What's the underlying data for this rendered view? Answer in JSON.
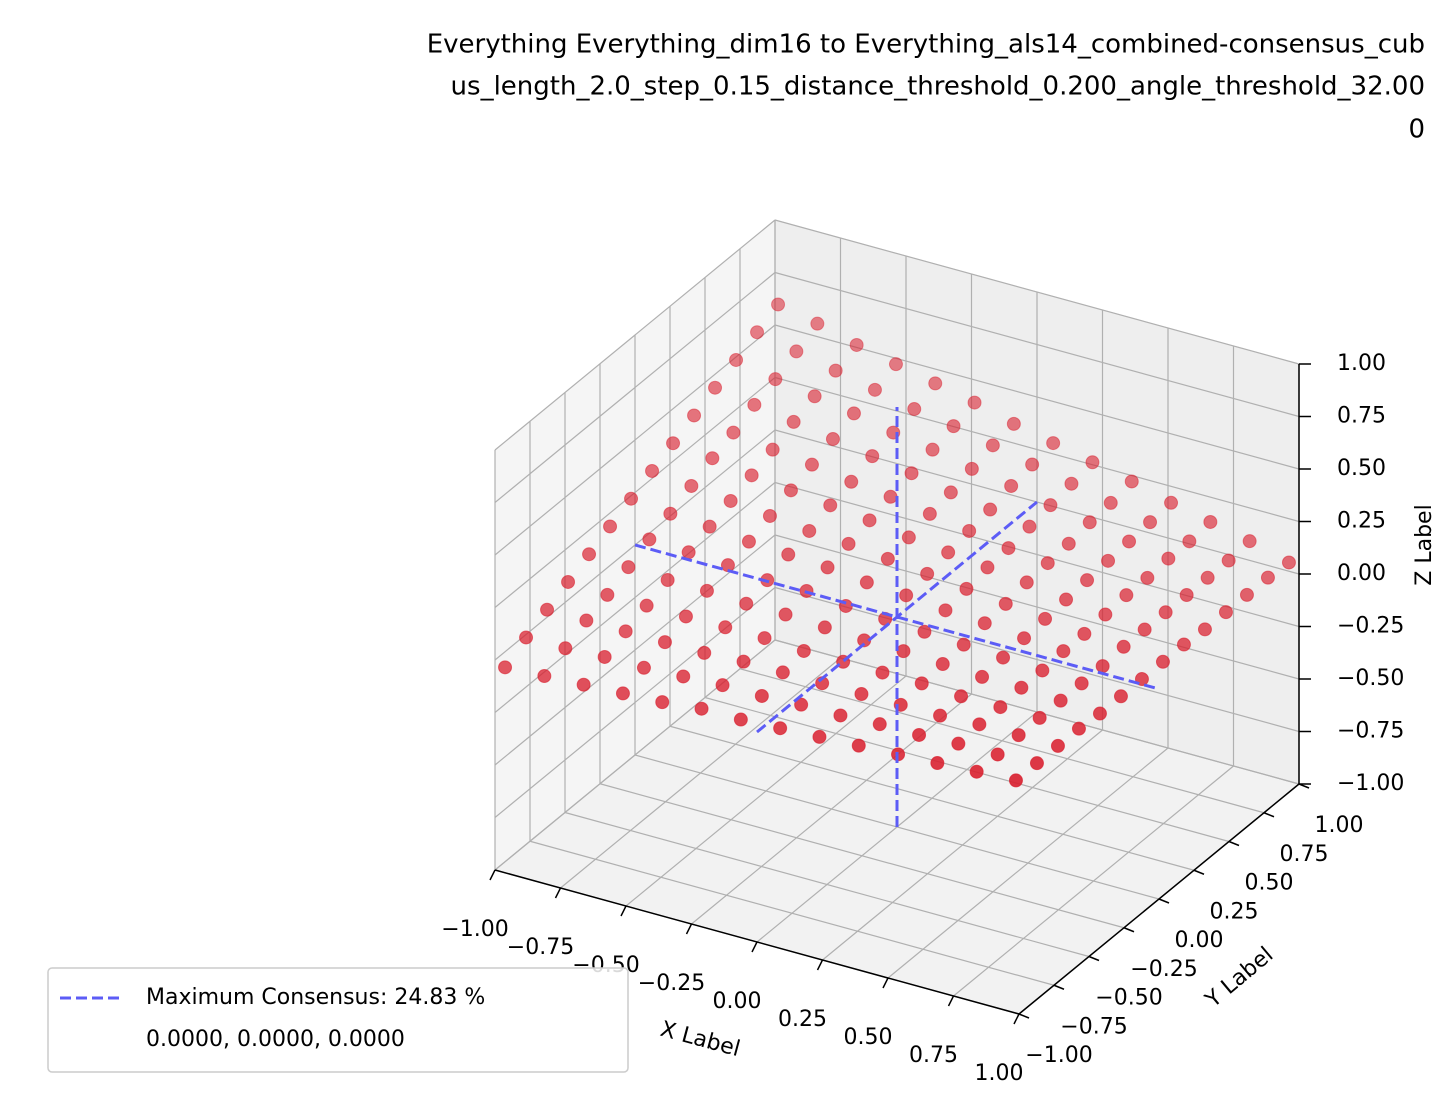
{
  "chart_data": {
    "type": "scatter3d",
    "title": [
      "Everything Everything_dim16 to Everything_als14_combined-consensus_cub",
      "us_length_2.0_step_0.15_distance_threshold_0.200_angle_threshold_32.00",
      "0"
    ],
    "xlabel": "X Label",
    "ylabel": "Y Label",
    "zlabel": "Z Label",
    "color": "#d9202f",
    "x": [
      -0.975,
      -0.825,
      -0.675,
      -0.525,
      -0.375,
      -0.225,
      -0.075,
      0.075,
      0.225,
      0.375,
      0.525,
      0.675,
      0.825,
      0.975
    ],
    "y": [
      -0.975,
      -0.825,
      -0.675,
      -0.525,
      -0.375,
      -0.225,
      -0.075,
      0.075,
      0.225,
      0.375,
      0.525,
      0.675,
      0.825,
      0.975
    ],
    "z": [
      [
        -0.04,
        0.02,
        0.07,
        0.12,
        0.17,
        0.22,
        0.27,
        0.32,
        0.37,
        0.42,
        0.47,
        0.52,
        0.57,
        0.62
      ],
      [
        -0.03,
        0.02,
        0.07,
        0.11,
        0.16,
        0.21,
        0.25,
        0.3,
        0.35,
        0.39,
        0.44,
        0.48,
        0.53,
        0.58
      ],
      [
        -0.02,
        0.03,
        0.07,
        0.11,
        0.15,
        0.2,
        0.24,
        0.28,
        0.32,
        0.36,
        0.41,
        0.45,
        0.49,
        0.53
      ],
      [
        -0.01,
        0.03,
        0.07,
        0.11,
        0.15,
        0.19,
        0.22,
        0.26,
        0.3,
        0.34,
        0.38,
        0.42,
        0.45,
        0.49
      ],
      [
        0.0,
        0.04,
        0.07,
        0.11,
        0.14,
        0.17,
        0.21,
        0.24,
        0.28,
        0.31,
        0.35,
        0.38,
        0.41,
        0.45
      ],
      [
        0.02,
        0.05,
        0.08,
        0.11,
        0.14,
        0.17,
        0.2,
        0.23,
        0.26,
        0.29,
        0.32,
        0.35,
        0.38,
        0.41
      ],
      [
        0.02,
        0.05,
        0.08,
        0.1,
        0.13,
        0.15,
        0.18,
        0.21,
        0.23,
        0.26,
        0.28,
        0.31,
        0.34,
        0.36
      ],
      [
        0.03,
        0.06,
        0.08,
        0.1,
        0.12,
        0.14,
        0.17,
        0.19,
        0.21,
        0.23,
        0.25,
        0.28,
        0.3,
        0.32
      ],
      [
        0.04,
        0.06,
        0.08,
        0.1,
        0.12,
        0.13,
        0.15,
        0.17,
        0.19,
        0.2,
        0.22,
        0.24,
        0.26,
        0.28
      ],
      [
        0.05,
        0.07,
        0.08,
        0.1,
        0.11,
        0.12,
        0.14,
        0.15,
        0.17,
        0.18,
        0.19,
        0.21,
        0.22,
        0.24
      ],
      [
        0.06,
        0.07,
        0.08,
        0.09,
        0.1,
        0.11,
        0.12,
        0.13,
        0.14,
        0.15,
        0.16,
        0.17,
        0.18,
        0.19
      ],
      [
        0.07,
        0.08,
        0.09,
        0.09,
        0.1,
        0.1,
        0.11,
        0.11,
        0.12,
        0.13,
        0.13,
        0.14,
        0.14,
        0.15
      ],
      [
        0.08,
        0.08,
        0.09,
        0.09,
        0.09,
        0.09,
        0.09,
        0.1,
        0.1,
        0.1,
        0.1,
        0.1,
        0.1,
        0.11
      ],
      [
        0.09,
        0.09,
        0.09,
        0.09,
        0.08,
        0.08,
        0.08,
        0.08,
        0.08,
        0.07,
        0.07,
        0.07,
        0.07,
        0.06
      ]
    ],
    "series": [
      {
        "name": "Maximum Consensus: 24.83 %",
        "color": "#5c5cf6",
        "style": "dashed",
        "point": {
          "x": 0,
          "y": 0,
          "z": 0
        }
      },
      {
        "name": "0.0000, 0.0000, 0.0000"
      }
    ],
    "legend": "lower left",
    "grid": true,
    "xlim": [
      -1,
      1
    ],
    "ylim": [
      -1,
      1
    ],
    "zlim": [
      -1,
      1
    ],
    "xticks": [
      {
        "value": -1,
        "label": "−1.00"
      },
      {
        "value": -0.75,
        "label": "−0.75"
      },
      {
        "value": -0.5,
        "label": "−0.50"
      },
      {
        "value": -0.25,
        "label": "−0.25"
      },
      {
        "value": 0,
        "label": "0.00"
      },
      {
        "value": 0.25,
        "label": "0.25"
      },
      {
        "value": 0.5,
        "label": "0.50"
      },
      {
        "value": 0.75,
        "label": "0.75"
      },
      {
        "value": 1,
        "label": "1.00"
      }
    ],
    "yticks": [
      {
        "value": -1,
        "label": "−1.00"
      },
      {
        "value": -0.75,
        "label": "−0.75"
      },
      {
        "value": -0.5,
        "label": "−0.50"
      },
      {
        "value": -0.25,
        "label": "−0.25"
      },
      {
        "value": 0,
        "label": "0.00"
      },
      {
        "value": 0.25,
        "label": "0.25"
      },
      {
        "value": 0.5,
        "label": "0.50"
      },
      {
        "value": 0.75,
        "label": "0.75"
      },
      {
        "value": 1,
        "label": "1.00"
      }
    ],
    "zticks": [
      {
        "value": -1,
        "label": "−1.00"
      },
      {
        "value": -0.75,
        "label": "−0.75"
      },
      {
        "value": -0.5,
        "label": "−0.50"
      },
      {
        "value": -0.25,
        "label": "−0.25"
      },
      {
        "value": 0,
        "label": "0.00"
      },
      {
        "value": 0.25,
        "label": "0.25"
      },
      {
        "value": 0.5,
        "label": "0.50"
      },
      {
        "value": 0.75,
        "label": "0.75"
      },
      {
        "value": 1,
        "label": "1.00"
      }
    ]
  }
}
